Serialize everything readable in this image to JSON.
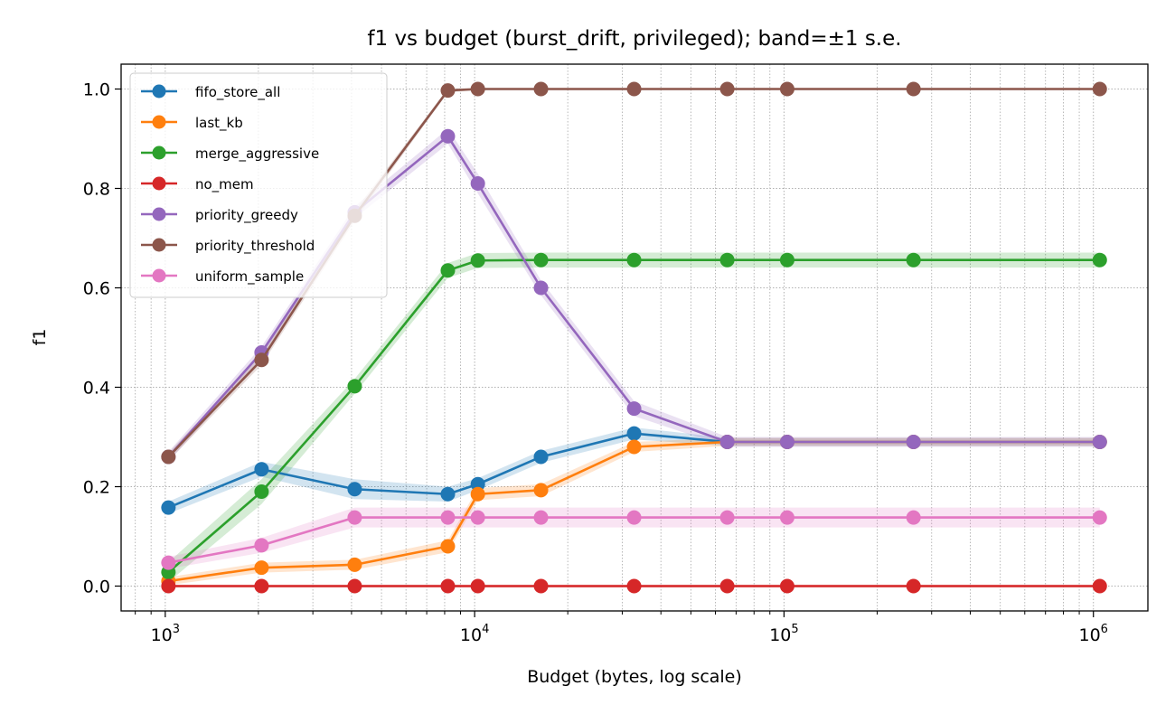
{
  "chart_data": {
    "type": "line",
    "title": "f1 vs budget (burst_drift, privileged); band=±1 s.e.",
    "xlabel": "Budget (bytes, log scale)",
    "ylabel": "f1",
    "x_scale": "log",
    "xlim": [
      720,
      1500000
    ],
    "ylim": [
      -0.05,
      1.05
    ],
    "x_major_ticks": [
      1000,
      10000,
      100000,
      1000000
    ],
    "x_tick_labels": [
      {
        "base": "10",
        "exp": "3"
      },
      {
        "base": "10",
        "exp": "4"
      },
      {
        "base": "10",
        "exp": "5"
      },
      {
        "base": "10",
        "exp": "6"
      }
    ],
    "y_ticks": [
      0.0,
      0.2,
      0.4,
      0.6,
      0.8,
      1.0
    ],
    "y_tick_labels": [
      "0.0",
      "0.2",
      "0.4",
      "0.6",
      "0.8",
      "1.0"
    ],
    "grid": true,
    "legend_position": "upper-left",
    "series": [
      {
        "name": "fifo_store_all",
        "color": "#1f77b4",
        "x": [
          1024,
          2048,
          4096,
          8192,
          10240,
          16384,
          32768,
          65536,
          102400,
          262144,
          1048576
        ],
        "y": [
          0.158,
          0.235,
          0.195,
          0.185,
          0.205,
          0.26,
          0.307,
          0.29,
          0.29,
          0.29,
          0.29
        ],
        "se": [
          0.012,
          0.015,
          0.02,
          0.015,
          0.012,
          0.012,
          0.012,
          0.008,
          0.008,
          0.008,
          0.008
        ]
      },
      {
        "name": "last_kb",
        "color": "#ff7f0e",
        "x": [
          1024,
          2048,
          4096,
          8192,
          10240,
          16384,
          32768,
          65536,
          102400,
          262144,
          1048576
        ],
        "y": [
          0.01,
          0.037,
          0.043,
          0.08,
          0.185,
          0.193,
          0.28,
          0.29,
          0.29,
          0.29,
          0.29
        ],
        "se": [
          0.008,
          0.01,
          0.01,
          0.012,
          0.012,
          0.012,
          0.01,
          0.008,
          0.008,
          0.008,
          0.008
        ]
      },
      {
        "name": "merge_aggressive",
        "color": "#2ca02c",
        "x": [
          1024,
          2048,
          4096,
          8192,
          10240,
          16384,
          32768,
          65536,
          102400,
          262144,
          1048576
        ],
        "y": [
          0.028,
          0.19,
          0.402,
          0.635,
          0.655,
          0.656,
          0.656,
          0.656,
          0.656,
          0.656,
          0.656
        ],
        "se": [
          0.02,
          0.025,
          0.015,
          0.015,
          0.015,
          0.015,
          0.015,
          0.015,
          0.015,
          0.015,
          0.015
        ]
      },
      {
        "name": "no_mem",
        "color": "#d62728",
        "x": [
          1024,
          2048,
          4096,
          8192,
          10240,
          16384,
          32768,
          65536,
          102400,
          262144,
          1048576
        ],
        "y": [
          0.0,
          0.0,
          0.0,
          0.0,
          0.0,
          0.0,
          0.0,
          0.0,
          0.0,
          0.0,
          0.0
        ],
        "se": [
          0.003,
          0.003,
          0.003,
          0.003,
          0.003,
          0.003,
          0.003,
          0.003,
          0.003,
          0.003,
          0.003
        ]
      },
      {
        "name": "priority_greedy",
        "color": "#9467bd",
        "x": [
          1024,
          2048,
          4096,
          8192,
          10240,
          16384,
          32768,
          65536,
          102400,
          262144,
          1048576
        ],
        "y": [
          0.26,
          0.47,
          0.752,
          0.905,
          0.81,
          0.6,
          0.357,
          0.29,
          0.29,
          0.29,
          0.29
        ],
        "se": [
          0.01,
          0.012,
          0.012,
          0.015,
          0.02,
          0.015,
          0.015,
          0.01,
          0.01,
          0.01,
          0.01
        ]
      },
      {
        "name": "priority_threshold",
        "color": "#8c564b",
        "x": [
          1024,
          2048,
          4096,
          8192,
          10240,
          16384,
          32768,
          65536,
          102400,
          262144,
          1048576
        ],
        "y": [
          0.26,
          0.455,
          0.745,
          0.997,
          1.0,
          1.0,
          1.0,
          1.0,
          1.0,
          1.0,
          1.0
        ],
        "se": [
          0.008,
          0.01,
          0.01,
          0.004,
          0.002,
          0.002,
          0.002,
          0.002,
          0.002,
          0.002,
          0.002
        ]
      },
      {
        "name": "uniform_sample",
        "color": "#e377c2",
        "x": [
          1024,
          2048,
          4096,
          8192,
          10240,
          16384,
          32768,
          65536,
          102400,
          262144,
          1048576
        ],
        "y": [
          0.047,
          0.082,
          0.138,
          0.138,
          0.138,
          0.138,
          0.138,
          0.138,
          0.138,
          0.138,
          0.138
        ],
        "se": [
          0.012,
          0.015,
          0.02,
          0.02,
          0.02,
          0.02,
          0.02,
          0.02,
          0.02,
          0.02,
          0.02
        ]
      }
    ]
  }
}
